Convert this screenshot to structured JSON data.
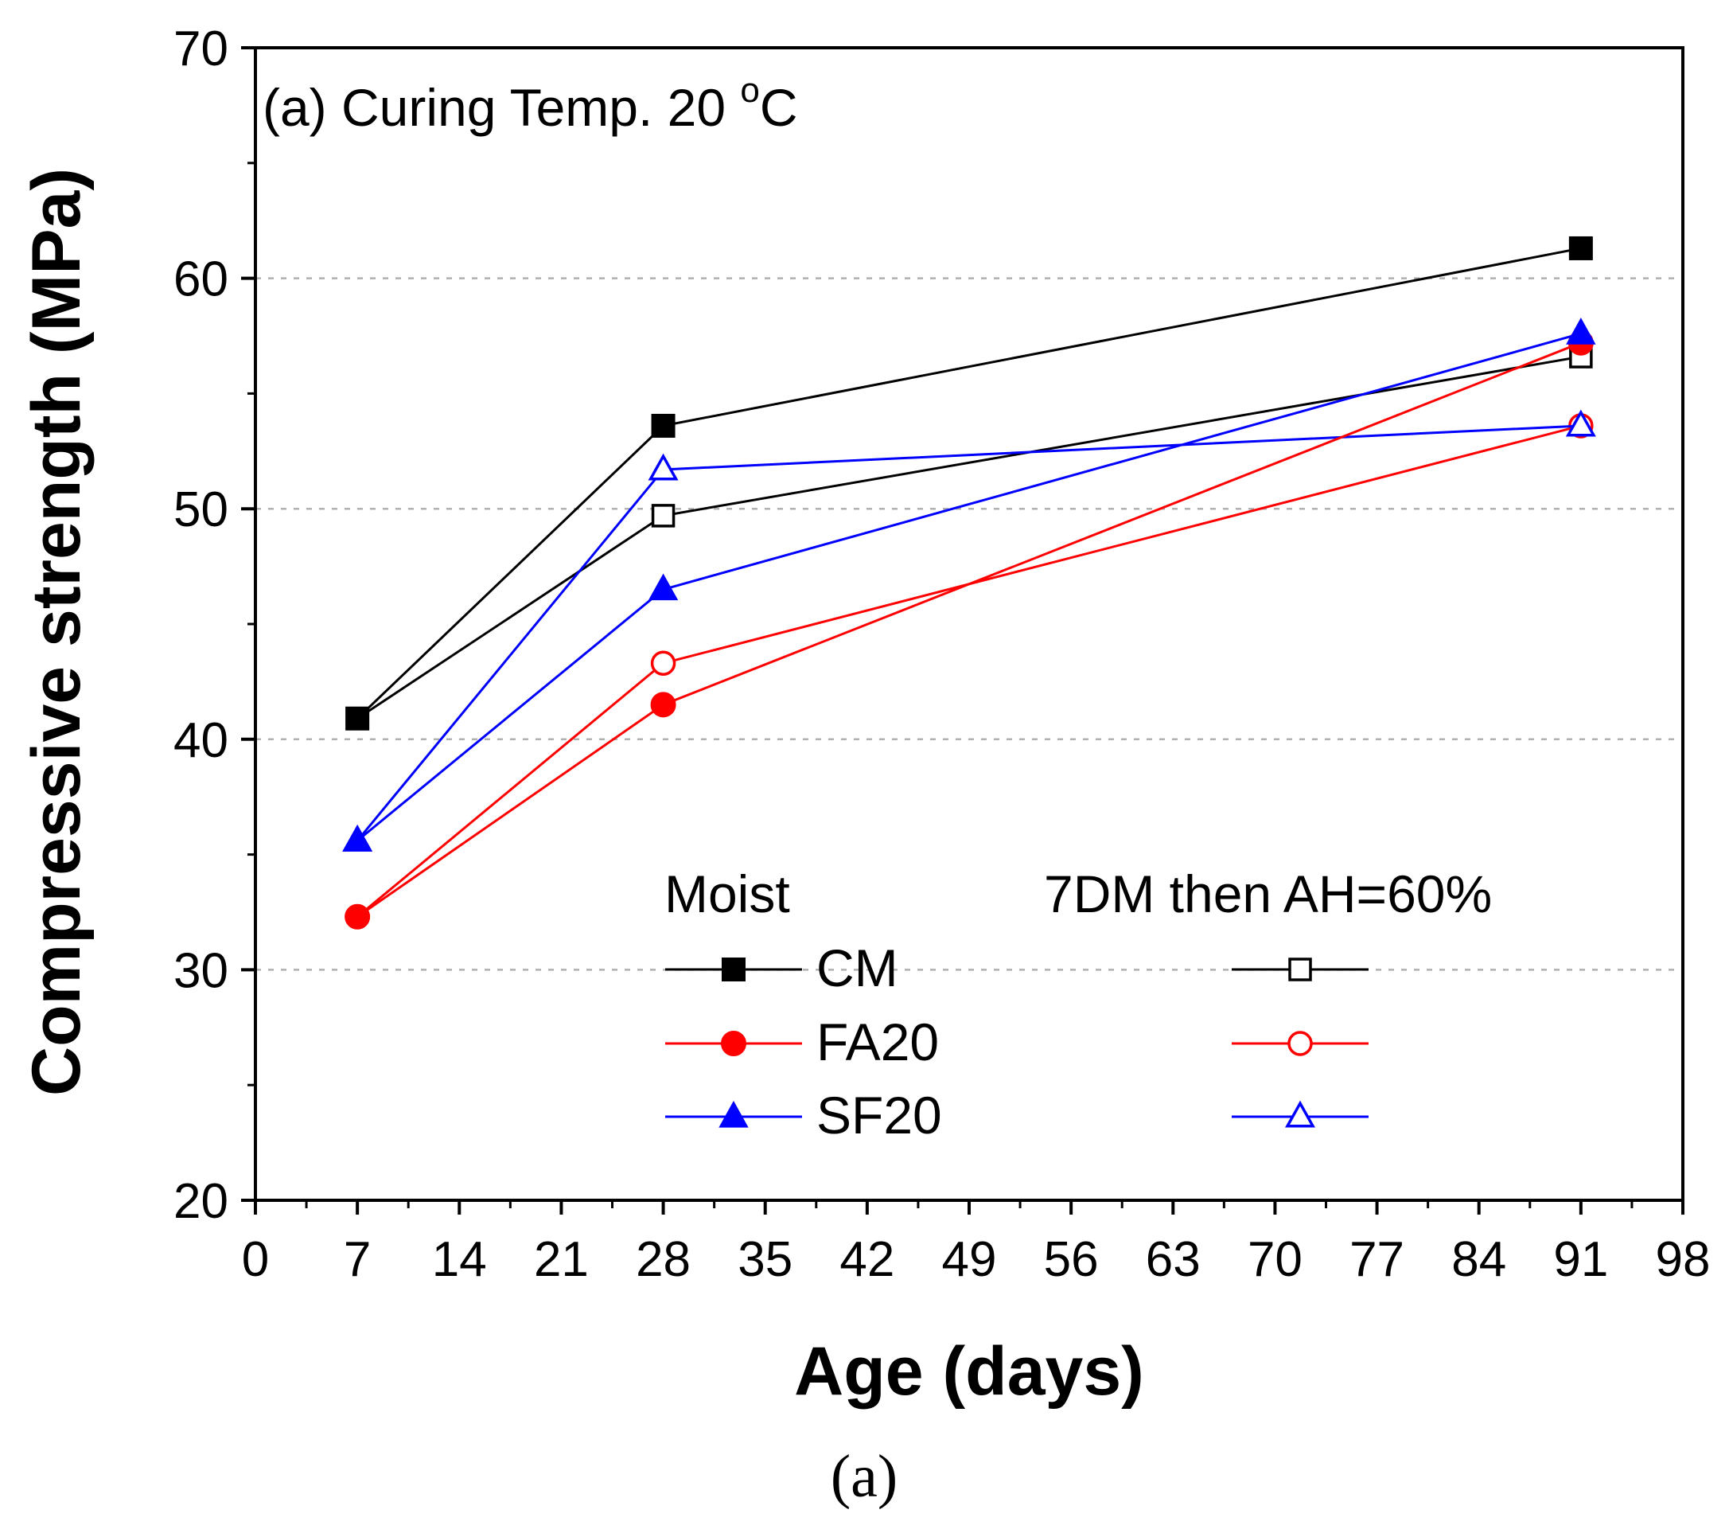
{
  "chart_data": {
    "type": "line",
    "annotation": {
      "prefix": "(a) Curing Temp. 20 ",
      "degree": "o",
      "unit": "C"
    },
    "xlabel": "Age (days)",
    "ylabel": "Compressive strength (MPa)",
    "xlim": [
      0,
      98
    ],
    "ylim": [
      20,
      70
    ],
    "xticks": [
      0,
      7,
      14,
      21,
      28,
      35,
      42,
      49,
      56,
      63,
      70,
      77,
      84,
      91,
      98
    ],
    "yticks": [
      20,
      30,
      40,
      50,
      60,
      70
    ],
    "gridlines_y": [
      30,
      40,
      50,
      60
    ],
    "caption": "(a)",
    "legend": {
      "header_left": "Moist",
      "header_right": "7DM then AH=60%",
      "labels": [
        "CM",
        "FA20",
        "SF20"
      ]
    },
    "series": [
      {
        "name": "CM",
        "condition": "Moist",
        "color": "#000000",
        "marker": "square",
        "filled": true,
        "x": [
          7,
          28,
          91
        ],
        "y": [
          40.9,
          53.6,
          61.3
        ]
      },
      {
        "name": "CM",
        "condition": "7DM then AH=60%",
        "color": "#000000",
        "marker": "square",
        "filled": false,
        "x": [
          7,
          28,
          91
        ],
        "y": [
          40.9,
          49.7,
          56.6
        ]
      },
      {
        "name": "FA20",
        "condition": "Moist",
        "color": "#ff0000",
        "marker": "circle",
        "filled": true,
        "x": [
          7,
          28,
          91
        ],
        "y": [
          32.3,
          41.5,
          57.2
        ]
      },
      {
        "name": "FA20",
        "condition": "7DM then AH=60%",
        "color": "#ff0000",
        "marker": "circle",
        "filled": false,
        "x": [
          7,
          28,
          91
        ],
        "y": [
          32.3,
          43.3,
          53.6
        ]
      },
      {
        "name": "SF20",
        "condition": "Moist",
        "color": "#0000ff",
        "marker": "triangle",
        "filled": true,
        "x": [
          7,
          28,
          91
        ],
        "y": [
          35.6,
          46.5,
          57.6
        ]
      },
      {
        "name": "SF20",
        "condition": "7DM then AH=60%",
        "color": "#0000ff",
        "marker": "triangle",
        "filled": false,
        "x": [
          7,
          28,
          91
        ],
        "y": [
          35.6,
          51.7,
          53.6
        ]
      }
    ]
  }
}
